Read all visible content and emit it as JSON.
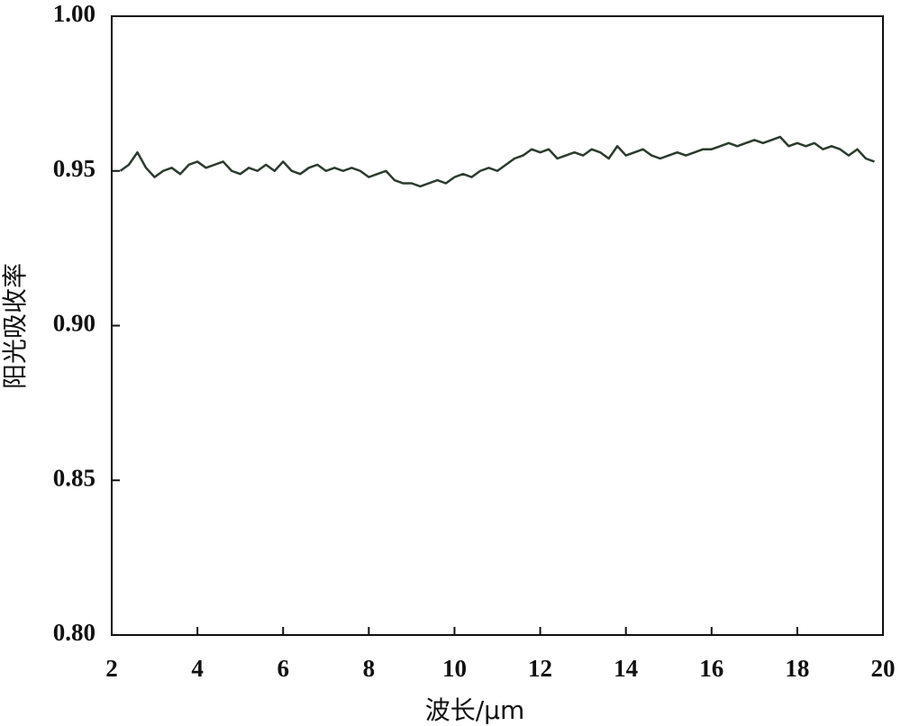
{
  "chart_data": {
    "type": "line",
    "x_label": "波长/μm",
    "y_label": "阳光吸收率",
    "x": [
      2.2,
      2.4,
      2.6,
      2.8,
      3.0,
      3.2,
      3.4,
      3.6,
      3.8,
      4.0,
      4.2,
      4.4,
      4.6,
      4.8,
      5.0,
      5.2,
      5.4,
      5.6,
      5.8,
      6.0,
      6.2,
      6.4,
      6.6,
      6.8,
      7.0,
      7.2,
      7.4,
      7.6,
      7.8,
      8.0,
      8.2,
      8.4,
      8.6,
      8.8,
      9.0,
      9.2,
      9.4,
      9.6,
      9.8,
      10.0,
      10.2,
      10.4,
      10.6,
      10.8,
      11.0,
      11.2,
      11.4,
      11.6,
      11.8,
      12.0,
      12.2,
      12.4,
      12.6,
      12.8,
      13.0,
      13.2,
      13.4,
      13.6,
      13.8,
      14.0,
      14.2,
      14.4,
      14.6,
      14.8,
      15.0,
      15.2,
      15.4,
      15.6,
      15.8,
      16.0,
      16.2,
      16.4,
      16.6,
      16.8,
      17.0,
      17.2,
      17.4,
      17.6,
      17.8,
      18.0,
      18.2,
      18.4,
      18.6,
      18.8,
      19.0,
      19.2,
      19.4,
      19.6,
      19.8
    ],
    "values": [
      0.95,
      0.952,
      0.956,
      0.951,
      0.948,
      0.95,
      0.951,
      0.949,
      0.952,
      0.953,
      0.951,
      0.952,
      0.953,
      0.95,
      0.949,
      0.951,
      0.95,
      0.952,
      0.95,
      0.953,
      0.95,
      0.949,
      0.951,
      0.952,
      0.95,
      0.951,
      0.95,
      0.951,
      0.95,
      0.948,
      0.949,
      0.95,
      0.947,
      0.946,
      0.946,
      0.945,
      0.946,
      0.947,
      0.946,
      0.948,
      0.949,
      0.948,
      0.95,
      0.951,
      0.95,
      0.952,
      0.954,
      0.955,
      0.957,
      0.956,
      0.957,
      0.954,
      0.955,
      0.956,
      0.955,
      0.957,
      0.956,
      0.954,
      0.958,
      0.955,
      0.956,
      0.957,
      0.955,
      0.954,
      0.955,
      0.956,
      0.955,
      0.956,
      0.957,
      0.957,
      0.958,
      0.959,
      0.958,
      0.959,
      0.96,
      0.959,
      0.96,
      0.961,
      0.958,
      0.959,
      0.958,
      0.959,
      0.957,
      0.958,
      0.957,
      0.955,
      0.957,
      0.954,
      0.953
    ],
    "color": "#2b3b2d",
    "xlim": [
      2,
      20
    ],
    "xticks": [
      2,
      4,
      6,
      8,
      10,
      12,
      14,
      16,
      18,
      20
    ],
    "ylim": [
      0.8,
      1.0
    ],
    "yticks": [
      {
        "value": 0.8,
        "label": "0.80"
      },
      0.85,
      {
        "value": 0.9,
        "label": "0.90"
      },
      0.95,
      {
        "value": 1.0,
        "label": "1.00"
      }
    ]
  }
}
